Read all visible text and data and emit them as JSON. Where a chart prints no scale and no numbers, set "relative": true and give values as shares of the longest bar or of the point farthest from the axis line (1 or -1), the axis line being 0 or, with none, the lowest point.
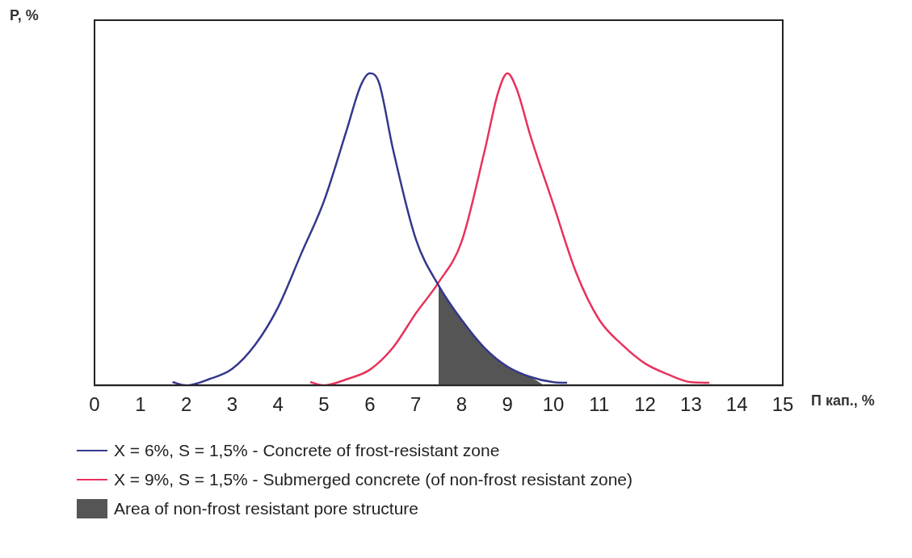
{
  "chart_data": {
    "type": "line",
    "relative": true,
    "xlabel": "П кап., %",
    "ylabel": "P, %",
    "xlim": [
      0,
      15
    ],
    "xticks": [
      0,
      1,
      2,
      3,
      4,
      5,
      6,
      7,
      8,
      9,
      10,
      11,
      12,
      13,
      14,
      15
    ],
    "legend": "bottom",
    "marker": "none",
    "line_style": "solid",
    "series": [
      {
        "name": "X = 6%, S = 1,5% - Concrete of frost-resistant zone",
        "color": "#34388c",
        "x": [
          1.7,
          2,
          2.5,
          3,
          3.5,
          4,
          4.5,
          5,
          5.5,
          5.8,
          6,
          6.2,
          6.5,
          7,
          7.5,
          8,
          8.5,
          9,
          9.5,
          10,
          10.3
        ],
        "values": [
          0.01,
          0,
          0.02,
          0.053,
          0.13,
          0.25,
          0.42,
          0.59,
          0.82,
          0.96,
          1,
          0.97,
          0.76,
          0.47,
          0.32,
          0.21,
          0.12,
          0.06,
          0.027,
          0.01,
          0.008
        ]
      },
      {
        "name": "X = 9%, S = 1,5% - Submerged concrete (of non-frost resistant zone)",
        "color": "#e8325a",
        "x": [
          4.7,
          5,
          5.5,
          6,
          6.5,
          7,
          7.5,
          8,
          8.5,
          8.8,
          9,
          9.2,
          9.5,
          10,
          10.5,
          11,
          11.5,
          12,
          12.5,
          13,
          13.4
        ],
        "values": [
          0.01,
          0,
          0.02,
          0.05,
          0.12,
          0.23,
          0.33,
          0.46,
          0.75,
          0.94,
          1,
          0.95,
          0.8,
          0.58,
          0.36,
          0.21,
          0.13,
          0.07,
          0.035,
          0.01,
          0.008
        ]
      },
      {
        "name": "Area of non-frost resistant pore structure",
        "type": "area",
        "color": "#555555",
        "x": [
          7.5,
          8,
          8.5,
          9,
          9.5,
          9.8
        ],
        "values": [
          0.32,
          0.21,
          0.12,
          0.06,
          0.027,
          0
        ]
      }
    ]
  }
}
